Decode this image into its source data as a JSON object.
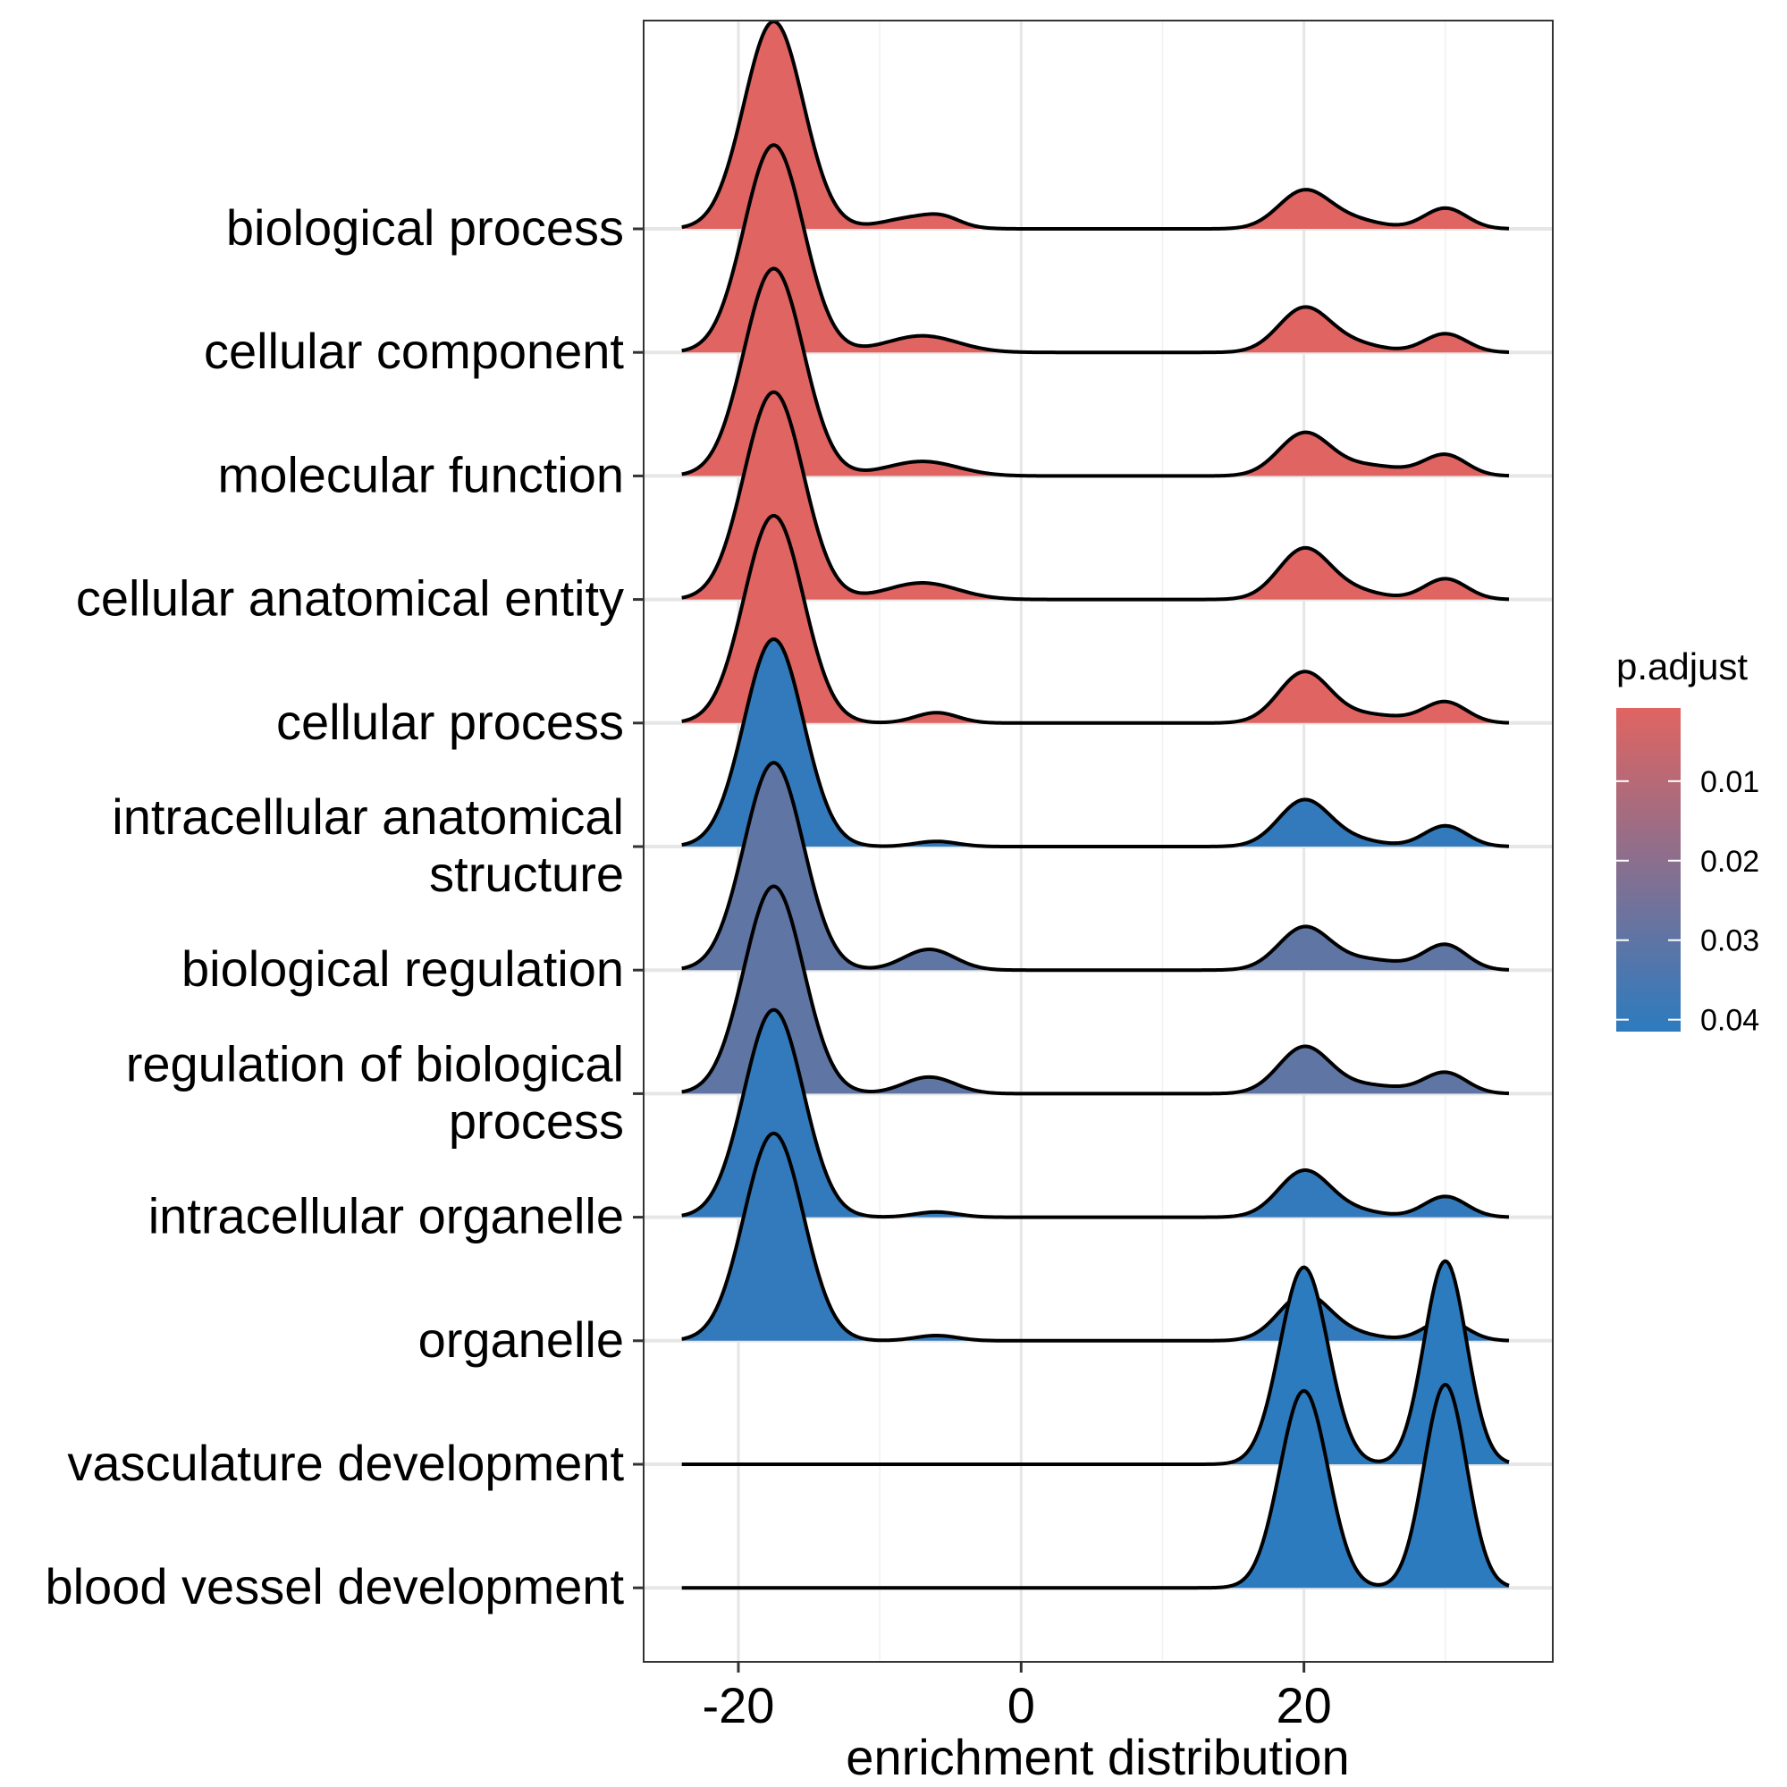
{
  "chart_data": {
    "type": "ridgeline",
    "xlabel": "enrichment distribution",
    "xlim": [
      -26.7,
      37.6
    ],
    "x_ticks": [
      -20,
      0,
      20
    ],
    "x_tick_labels": [
      "-20",
      "0",
      "20"
    ],
    "grid": true,
    "legend": {
      "title": "p.adjust",
      "placement": "right",
      "ticks": [
        0.01,
        0.02,
        0.03,
        0.04
      ],
      "tick_labels": [
        "0.01",
        "0.02",
        "0.03",
        "0.04"
      ],
      "range": [
        0.0008,
        0.0415
      ],
      "color_low": "#e06461",
      "color_high": "#2c7bbf"
    },
    "x_range": [
      -24,
      34.5
    ],
    "series": [
      {
        "name": "biological process",
        "label_lines": [
          "biological process"
        ],
        "p_adjust": 0.0009,
        "components": [
          [
            -17.5,
            2.1,
            1.0
          ],
          [
            -7.5,
            2.2,
            0.055
          ],
          [
            -5.5,
            1.2,
            0.03
          ],
          [
            20,
            1.8,
            0.18
          ],
          [
            23.5,
            2.0,
            0.04
          ],
          [
            30,
            1.5,
            0.1
          ]
        ]
      },
      {
        "name": "cellular component",
        "label_lines": [
          "cellular component"
        ],
        "p_adjust": 0.0009,
        "components": [
          [
            -17.5,
            2.1,
            1.0
          ],
          [
            -7,
            2.5,
            0.08
          ],
          [
            20,
            1.8,
            0.21
          ],
          [
            23.5,
            2.0,
            0.04
          ],
          [
            30,
            1.5,
            0.09
          ]
        ]
      },
      {
        "name": "molecular function",
        "label_lines": [
          "molecular function"
        ],
        "p_adjust": 0.0009,
        "components": [
          [
            -17.5,
            2.1,
            1.0
          ],
          [
            -7,
            2.5,
            0.07
          ],
          [
            20,
            1.8,
            0.2
          ],
          [
            24.5,
            2.5,
            0.05
          ],
          [
            30,
            1.5,
            0.1
          ]
        ]
      },
      {
        "name": "cellular anatomical entity",
        "label_lines": [
          "cellular anatomical entity"
        ],
        "p_adjust": 0.0009,
        "components": [
          [
            -17.5,
            2.1,
            1.0
          ],
          [
            -7,
            2.5,
            0.08
          ],
          [
            20,
            1.8,
            0.24
          ],
          [
            23.5,
            2.0,
            0.04
          ],
          [
            30,
            1.5,
            0.1
          ]
        ]
      },
      {
        "name": "cellular process",
        "label_lines": [
          "cellular process"
        ],
        "p_adjust": 0.0009,
        "components": [
          [
            -17.5,
            2.1,
            1.0
          ],
          [
            -6,
            1.5,
            0.05
          ],
          [
            20,
            1.8,
            0.24
          ],
          [
            24.5,
            2.5,
            0.04
          ],
          [
            30,
            1.5,
            0.1
          ]
        ]
      },
      {
        "name": "intracellular anatomical structure",
        "label_lines": [
          "intracellular anatomical",
          "structure"
        ],
        "p_adjust": 0.04,
        "components": [
          [
            -17.5,
            2.1,
            1.0
          ],
          [
            -6,
            1.5,
            0.025
          ],
          [
            20,
            1.8,
            0.22
          ],
          [
            23.5,
            2.0,
            0.03
          ],
          [
            30,
            1.5,
            0.1
          ]
        ]
      },
      {
        "name": "biological regulation",
        "label_lines": [
          "biological regulation"
        ],
        "p_adjust": 0.03,
        "components": [
          [
            -17.5,
            2.1,
            1.0
          ],
          [
            -6.5,
            1.8,
            0.1
          ],
          [
            20,
            1.8,
            0.2
          ],
          [
            24.5,
            2.5,
            0.05
          ],
          [
            30,
            1.5,
            0.12
          ]
        ]
      },
      {
        "name": "regulation of biological process",
        "label_lines": [
          "regulation of biological",
          "process"
        ],
        "p_adjust": 0.03,
        "components": [
          [
            -17.5,
            2.1,
            1.0
          ],
          [
            -6.5,
            1.8,
            0.08
          ],
          [
            20,
            1.8,
            0.22
          ],
          [
            24.5,
            2.5,
            0.04
          ],
          [
            30,
            1.5,
            0.1
          ]
        ]
      },
      {
        "name": "intracellular organelle",
        "label_lines": [
          "intracellular organelle"
        ],
        "p_adjust": 0.04,
        "components": [
          [
            -17.5,
            2.1,
            1.0
          ],
          [
            -6,
            1.5,
            0.025
          ],
          [
            20,
            1.8,
            0.22
          ],
          [
            23.5,
            2.0,
            0.03
          ],
          [
            30,
            1.5,
            0.1
          ]
        ]
      },
      {
        "name": "organelle",
        "label_lines": [
          "organelle"
        ],
        "p_adjust": 0.04,
        "components": [
          [
            -17.5,
            2.1,
            1.0
          ],
          [
            -6,
            1.5,
            0.025
          ],
          [
            20,
            1.8,
            0.22
          ],
          [
            23.5,
            2.0,
            0.03
          ],
          [
            30,
            1.5,
            0.1
          ]
        ]
      },
      {
        "name": "vasculature development",
        "label_lines": [
          "vasculature development"
        ],
        "p_adjust": 0.0415,
        "components": [
          [
            20,
            1.7,
            0.95
          ],
          [
            30,
            1.5,
            0.98
          ]
        ]
      },
      {
        "name": "blood vessel development",
        "label_lines": [
          "blood vessel development"
        ],
        "p_adjust": 0.0415,
        "components": [
          [
            20,
            1.7,
            0.95
          ],
          [
            30,
            1.5,
            0.98
          ]
        ]
      }
    ]
  }
}
